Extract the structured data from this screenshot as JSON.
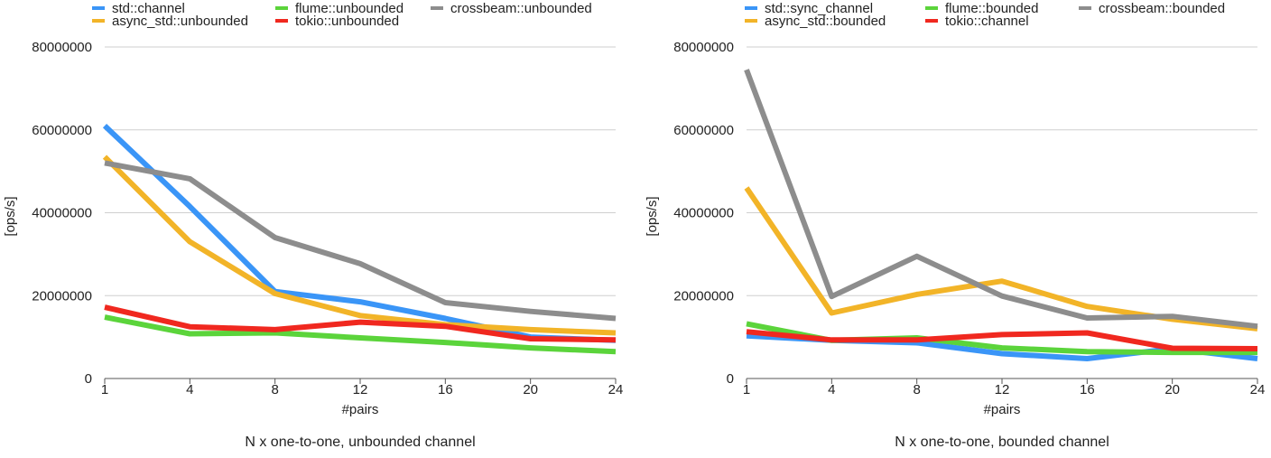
{
  "chart_data": [
    {
      "type": "line",
      "title": "N x one-to-one, unbounded channel",
      "xlabel": "#pairs",
      "ylabel": "[ops/s]",
      "x": [
        1,
        4,
        8,
        12,
        16,
        20,
        24
      ],
      "ylim": [
        0,
        80000000
      ],
      "yticks": [
        "0",
        "20000000",
        "40000000",
        "60000000",
        "80000000"
      ],
      "grid": true,
      "legend_position": "top",
      "series": [
        {
          "name": "std::channel",
          "color": "#3a95f7",
          "values": [
            61000000,
            41500000,
            21000000,
            18500000,
            14500000,
            10000000,
            9200000
          ]
        },
        {
          "name": "async_std::unbounded",
          "color": "#f2b428",
          "values": [
            53500000,
            33000000,
            20500000,
            15200000,
            13000000,
            11800000,
            11000000
          ]
        },
        {
          "name": "flume::unbounded",
          "color": "#5bd43b",
          "values": [
            14800000,
            10800000,
            11000000,
            9800000,
            8700000,
            7400000,
            6500000
          ]
        },
        {
          "name": "tokio::unbounded",
          "color": "#f0281f",
          "values": [
            17200000,
            12500000,
            11800000,
            13600000,
            12600000,
            9600000,
            9300000
          ]
        },
        {
          "name": "crossbeam::unbounded",
          "color": "#8d8d8d",
          "values": [
            52000000,
            48200000,
            34000000,
            27700000,
            18300000,
            16200000,
            14500000
          ]
        }
      ]
    },
    {
      "type": "line",
      "title": "N x one-to-one, bounded channel",
      "xlabel": "#pairs",
      "ylabel": "[ops/s]",
      "x": [
        1,
        4,
        8,
        12,
        16,
        20,
        24
      ],
      "ylim": [
        0,
        80000000
      ],
      "yticks": [
        "0",
        "20000000",
        "40000000",
        "60000000",
        "80000000"
      ],
      "grid": true,
      "legend_position": "top",
      "series": [
        {
          "name": "std::sync_channel",
          "color": "#3a95f7",
          "values": [
            10300000,
            9200000,
            8600000,
            6000000,
            4800000,
            7200000,
            4800000
          ]
        },
        {
          "name": "async_std::bounded",
          "color": "#f2b428",
          "values": [
            46000000,
            15800000,
            20300000,
            23500000,
            17400000,
            14300000,
            12000000
          ]
        },
        {
          "name": "flume::bounded",
          "color": "#5bd43b",
          "values": [
            13200000,
            9200000,
            9800000,
            7400000,
            6500000,
            6300000,
            6300000
          ]
        },
        {
          "name": "tokio::channel",
          "color": "#f0281f",
          "values": [
            11300000,
            9300000,
            9300000,
            10600000,
            11000000,
            7300000,
            7200000
          ]
        },
        {
          "name": "crossbeam::bounded",
          "color": "#8d8d8d",
          "values": [
            74500000,
            19800000,
            29500000,
            19900000,
            14600000,
            15000000,
            12600000
          ]
        }
      ]
    }
  ]
}
